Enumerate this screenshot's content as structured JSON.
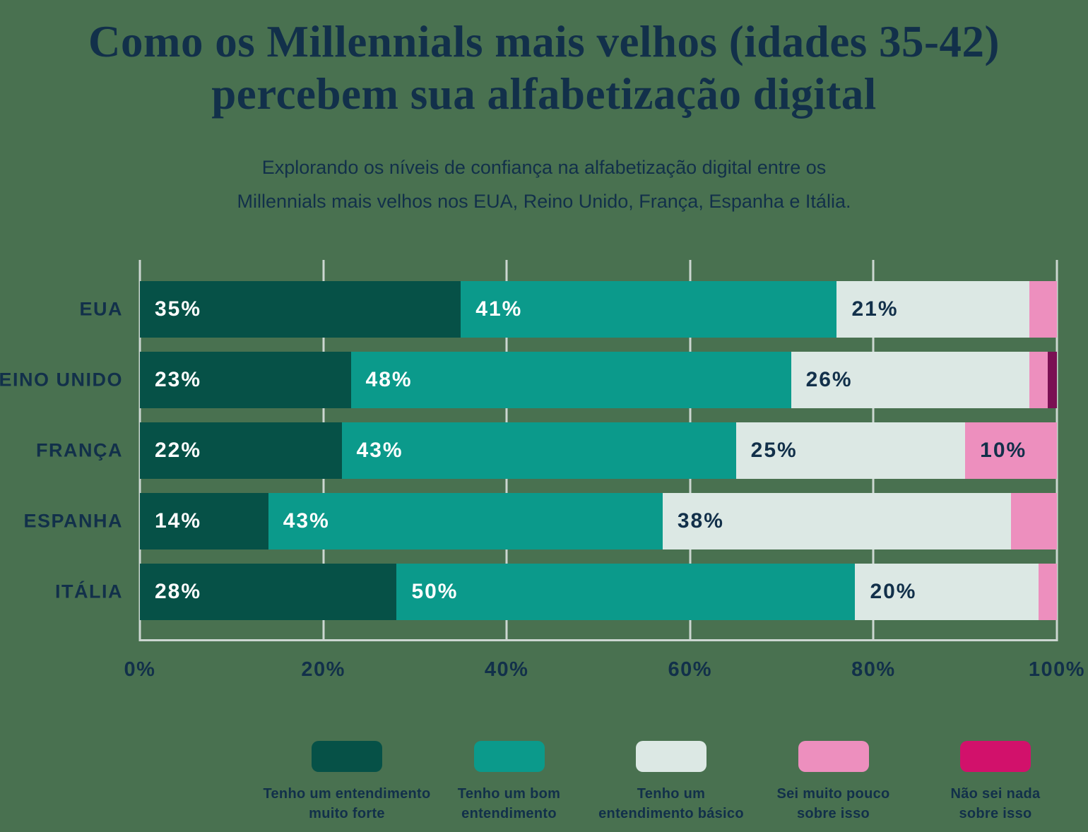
{
  "page": {
    "background_color": "#497150",
    "text_color": "#12304a"
  },
  "chart_data": {
    "type": "bar",
    "orientation": "horizontal",
    "stacked": true,
    "title": "Como os Millennials mais velhos (idades 35-42) percebem sua alfabetização digital",
    "subtitle": "Explorando os níveis de confiança na alfabetização digital entre os Millennials mais velhos nos EUA, Reino Unido, França, Espanha e Itália.",
    "categories": [
      "EUA",
      "REINO UNIDO",
      "FRANÇA",
      "ESPANHA",
      "ITÁLIA"
    ],
    "series": [
      {
        "name": "Tenho um entendimento\nmuito forte",
        "color": "#065147",
        "value_label_color": "#ffffff",
        "values": [
          35,
          23,
          22,
          14,
          28
        ]
      },
      {
        "name": "Tenho um bom\nentendimento",
        "color": "#0b9a8b",
        "value_label_color": "#ffffff",
        "values": [
          41,
          48,
          43,
          43,
          50
        ]
      },
      {
        "name": "Tenho um\nentendimento básico",
        "color": "#dce8e4",
        "value_label_color": "#12304a",
        "values": [
          21,
          26,
          25,
          38,
          20
        ]
      },
      {
        "name": "Sei muito pouco\nsobre isso",
        "color": "#ed8fbe",
        "value_label_color": "#12304a",
        "values": [
          3,
          2,
          10,
          5,
          2
        ]
      },
      {
        "name": "Não sei nada\nsobre isso",
        "color": "#7a1053",
        "legend_color": "#d2116b",
        "value_label_color": "#ffffff",
        "values": [
          0,
          1,
          0,
          0,
          0
        ]
      }
    ],
    "x_ticks": [
      {
        "label": "0%",
        "value": 0
      },
      {
        "label": "20%",
        "value": 20
      },
      {
        "label": "40%",
        "value": 40
      },
      {
        "label": "60%",
        "value": 60
      },
      {
        "label": "80%",
        "value": 80
      },
      {
        "label": "100%",
        "value": 100
      }
    ],
    "xlim": [
      0,
      100
    ],
    "grid": true,
    "gridline_color": "#ccd6d1",
    "legend_position": "bottom",
    "value_label_suffix": "%",
    "min_value_for_label": 8
  }
}
